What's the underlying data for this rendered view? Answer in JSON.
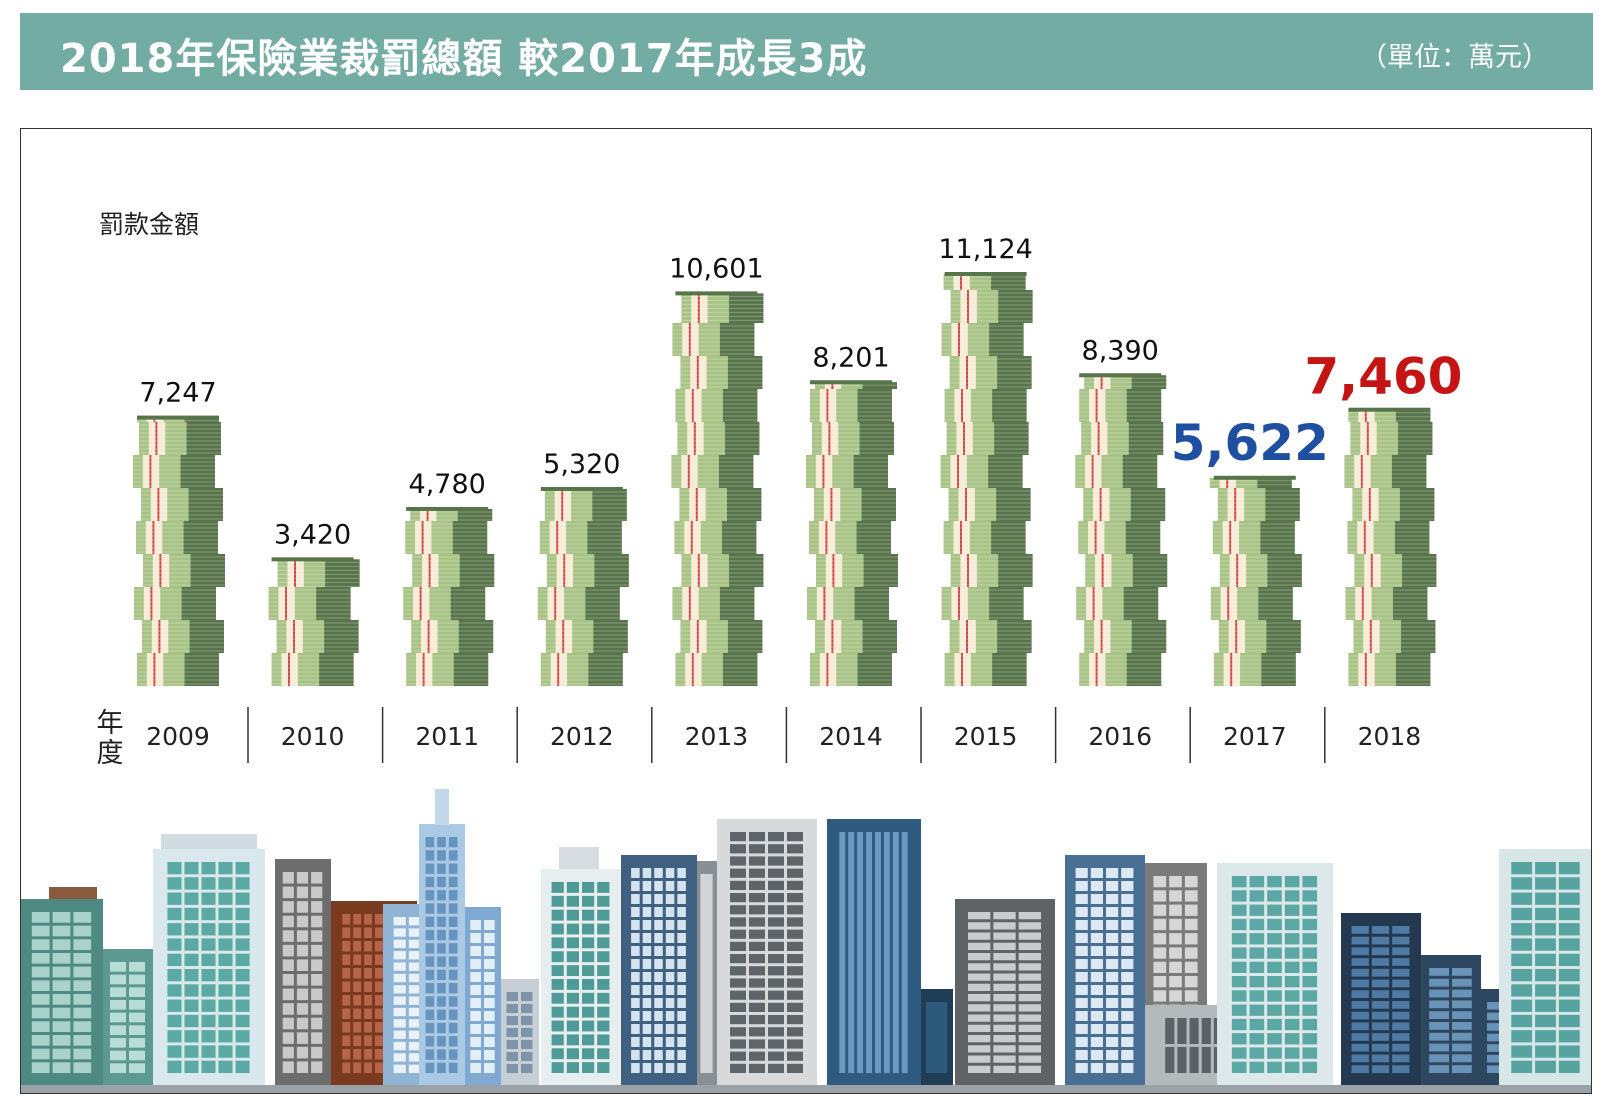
{
  "header": {
    "title": "2018年保險業裁罰總額 較2017年成長3成",
    "unit": "（單位：萬元）"
  },
  "colors": {
    "banner": "#72aca2",
    "money_light": "#a8c386",
    "money_dark": "#58744a",
    "strap": "#f6ecd6",
    "highlight_2017": "#1f4fa0",
    "highlight_2018": "#c41414"
  },
  "chart_data": {
    "type": "bar",
    "title": "2018年保險業裁罰總額 較2017年成長3成",
    "ylabel": "罰款金額",
    "xlabel": "年度",
    "unit": "（單位：萬元）",
    "categories": [
      "2009",
      "2010",
      "2011",
      "2012",
      "2013",
      "2014",
      "2015",
      "2016",
      "2017",
      "2018"
    ],
    "values": [
      7247,
      3420,
      4780,
      5320,
      10601,
      8201,
      11124,
      8390,
      5622,
      7460
    ],
    "value_labels": [
      "7,247",
      "3,420",
      "4,780",
      "5,320",
      "10,601",
      "8,201",
      "11,124",
      "8,390",
      "5,622",
      "7,460"
    ],
    "highlight": {
      "2017": "blue",
      "2018": "red"
    },
    "ylim": [
      0,
      11124
    ],
    "grid": false,
    "legend": "none"
  }
}
